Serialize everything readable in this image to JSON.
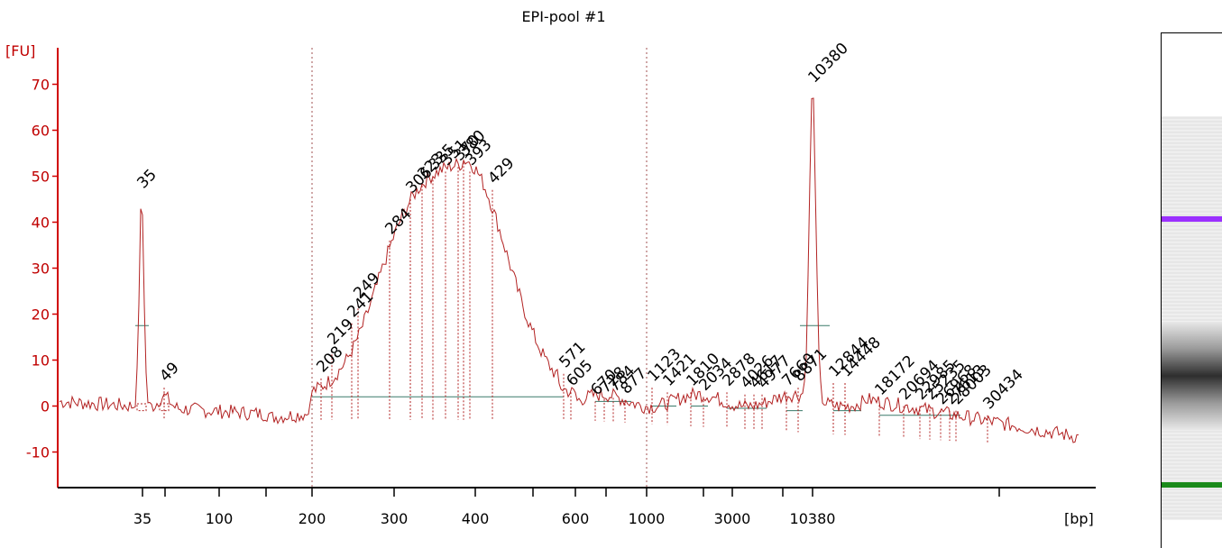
{
  "chart_data": {
    "type": "line",
    "title": "EPI-pool #1",
    "ylabel": "[FU]",
    "xlabel": "[bp]",
    "ylim": [
      -18,
      77
    ],
    "yticks": [
      -10,
      0,
      10,
      20,
      30,
      40,
      50,
      60,
      70
    ],
    "xticks": [
      {
        "label": "35",
        "x": 158
      },
      {
        "label": "",
        "x": 183
      },
      {
        "label": "100",
        "x": 243
      },
      {
        "label": "",
        "x": 295
      },
      {
        "label": "200",
        "x": 346
      },
      {
        "label": "300",
        "x": 437
      },
      {
        "label": "400",
        "x": 527
      },
      {
        "label": "",
        "x": 591
      },
      {
        "label": "600",
        "x": 638
      },
      {
        "label": "",
        "x": 672
      },
      {
        "label": "1000",
        "x": 717
      },
      {
        "label": "",
        "x": 780
      },
      {
        "label": "3000",
        "x": 812
      },
      {
        "label": "",
        "x": 868
      },
      {
        "label": "10380",
        "x": 901
      },
      {
        "label": "",
        "x": 1108
      }
    ],
    "dotted_lines_at": [
      346,
      717
    ],
    "peaks": [
      {
        "label": "35",
        "x": 157,
        "y": 46,
        "color": "#1a8a1a",
        "role": "lower marker"
      },
      {
        "label": "49",
        "x": 182,
        "y": 4,
        "color": "#000000"
      },
      {
        "label": "208",
        "x": 356,
        "y": 6
      },
      {
        "label": "219",
        "x": 368,
        "y": 12
      },
      {
        "label": "241",
        "x": 390,
        "y": 18
      },
      {
        "label": "249",
        "x": 397,
        "y": 22
      },
      {
        "label": "284",
        "x": 432,
        "y": 36
      },
      {
        "label": "306",
        "x": 455,
        "y": 45
      },
      {
        "label": "323",
        "x": 468,
        "y": 48
      },
      {
        "label": "335",
        "x": 480,
        "y": 50
      },
      {
        "label": "351",
        "x": 494,
        "y": 51
      },
      {
        "label": "370",
        "x": 508,
        "y": 52
      },
      {
        "label": "380",
        "x": 514,
        "y": 53
      },
      {
        "label": "393",
        "x": 521,
        "y": 51
      },
      {
        "label": "429",
        "x": 546,
        "y": 47
      },
      {
        "label": "571",
        "x": 625,
        "y": 7
      },
      {
        "label": "605",
        "x": 633,
        "y": 3
      },
      {
        "label": "670",
        "x": 660,
        "y": 1
      },
      {
        "label": "728",
        "x": 670,
        "y": 1.5
      },
      {
        "label": "784",
        "x": 680,
        "y": 1.8
      },
      {
        "label": "877",
        "x": 693,
        "y": 1.3
      },
      {
        "label": "1123",
        "x": 723,
        "y": 4
      },
      {
        "label": "1421",
        "x": 740,
        "y": 3
      },
      {
        "label": "1810",
        "x": 766,
        "y": 3
      },
      {
        "label": "2034",
        "x": 780,
        "y": 2
      },
      {
        "label": "2878",
        "x": 806,
        "y": 3
      },
      {
        "label": "4026",
        "x": 826,
        "y": 2.5
      },
      {
        "label": "4617",
        "x": 836,
        "y": 2.5
      },
      {
        "label": "4977",
        "x": 845,
        "y": 2.5
      },
      {
        "label": "7660",
        "x": 872,
        "y": 3
      },
      {
        "label": "8871",
        "x": 885,
        "y": 4
      },
      {
        "label": "10380",
        "x": 901,
        "y": 69,
        "color": "#9b30ff",
        "role": "upper marker"
      },
      {
        "label": "12844",
        "x": 924,
        "y": 5
      },
      {
        "label": "14448",
        "x": 937,
        "y": 5
      },
      {
        "label": "18172",
        "x": 975,
        "y": 1
      },
      {
        "label": "20694",
        "x": 1002,
        "y": 0
      },
      {
        "label": "22985",
        "x": 1020,
        "y": 0
      },
      {
        "label": "25235",
        "x": 1031,
        "y": 0
      },
      {
        "label": "26968",
        "x": 1043,
        "y": -1
      },
      {
        "label": "27613",
        "x": 1053,
        "y": -1
      },
      {
        "label": "28003",
        "x": 1060,
        "y": -1
      },
      {
        "label": "30434",
        "x": 1095,
        "y": -2
      }
    ]
  },
  "gel_lane": {
    "marker_colors": {
      "upper": "#9b30ff",
      "lower": "#1a8a1a"
    }
  }
}
